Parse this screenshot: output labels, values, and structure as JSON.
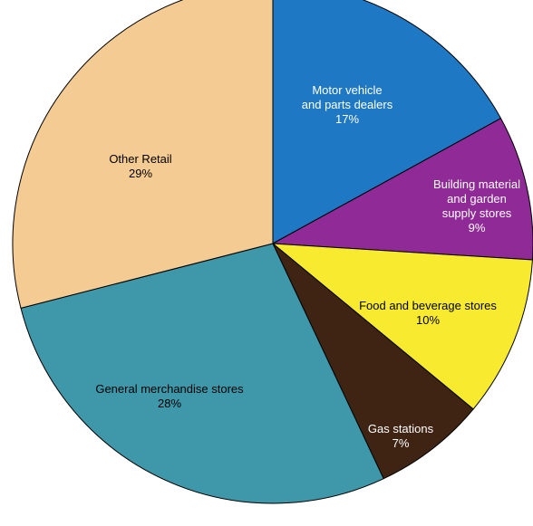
{
  "chart_data": {
    "type": "pie",
    "title": "",
    "start_angle_deg": 0,
    "direction": "clockwise",
    "slices": [
      {
        "lines": [
          "Motor vehicle",
          "and parts dealers"
        ],
        "pct_label": "17%",
        "value": 17,
        "color": "#1F78C4",
        "text_color": "#FFFFFF"
      },
      {
        "lines": [
          "Building material",
          "and garden",
          "supply stores"
        ],
        "pct_label": "9%",
        "value": 9,
        "color": "#8F2A96",
        "text_color": "#FFFFFF"
      },
      {
        "lines": [
          "Food and beverage stores"
        ],
        "pct_label": "10%",
        "value": 10,
        "color": "#F7EA2F",
        "text_color": "#000000"
      },
      {
        "lines": [
          "Gas stations"
        ],
        "pct_label": "7%",
        "value": 7,
        "color": "#3F2414",
        "text_color": "#FFFFFF"
      },
      {
        "lines": [
          "General merchandise stores"
        ],
        "pct_label": "28%",
        "value": 28,
        "color": "#3F97AA",
        "text_color": "#000000"
      },
      {
        "lines": [
          "Other Retail"
        ],
        "pct_label": "29%",
        "value": 29,
        "color": "#F5CB94",
        "text_color": "#000000"
      }
    ]
  }
}
